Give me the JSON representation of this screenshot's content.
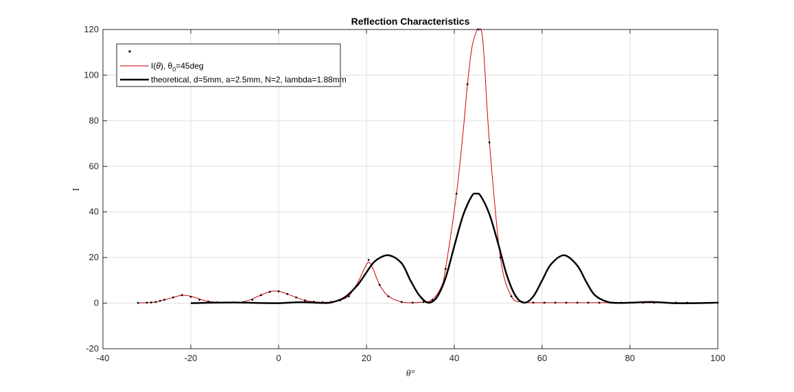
{
  "chart_data": {
    "type": "line",
    "title": "Reflection Characteristics",
    "xlabel": "θ°",
    "ylabel": "I",
    "xlim": [
      -40,
      100
    ],
    "ylim": [
      -20,
      120
    ],
    "xticks": [
      -40,
      -20,
      0,
      20,
      40,
      60,
      80,
      100
    ],
    "yticks": [
      -20,
      0,
      20,
      40,
      60,
      80,
      100,
      120
    ],
    "xtick_labels": [
      "-40",
      "-20",
      "0",
      "20",
      "40",
      "60",
      "80",
      "100"
    ],
    "ytick_labels": [
      "-20",
      "0",
      "20",
      "40",
      "60",
      "80",
      "100",
      "120"
    ],
    "grid": true,
    "legend_position": "top-left",
    "series": [
      {
        "name": "",
        "style": "points",
        "color": "#000000",
        "x": [
          -32,
          -30,
          -29,
          -28,
          -27,
          -26,
          -24,
          -22,
          -20,
          -18,
          -16,
          -14,
          -12,
          -10,
          -8,
          -6,
          -4,
          -2,
          0,
          2,
          4,
          6,
          8,
          10,
          12,
          14,
          16,
          18,
          20.5,
          23,
          25,
          28,
          30.5,
          33,
          35,
          38,
          40.5,
          43,
          45.5,
          48,
          50.5,
          53,
          55.5,
          58,
          60.5,
          63,
          65.5,
          68,
          70.5,
          73,
          75.5,
          78,
          80.5,
          83,
          85.5,
          88,
          90.5,
          93,
          100
        ],
        "y": [
          0.1,
          0.2,
          0.3,
          0.5,
          1.0,
          1.5,
          2.5,
          3.5,
          2.8,
          1.5,
          0.7,
          0.4,
          0.3,
          0.3,
          0.5,
          1.5,
          3.5,
          5.0,
          5.2,
          4.0,
          2.5,
          1.2,
          0.6,
          0.4,
          0.5,
          1.2,
          3.0,
          8.0,
          19.0,
          8.0,
          3.0,
          0.5,
          0.2,
          0.5,
          1.5,
          15.0,
          48.0,
          96.0,
          120.0,
          70.5,
          20.0,
          3.0,
          0.5,
          0.2,
          0.2,
          0.2,
          0.2,
          0.2,
          0.2,
          0.2,
          0.2,
          0.2,
          0.2,
          0.2,
          0.2,
          0.2,
          0.2,
          0.2,
          0.2
        ]
      },
      {
        "name": "I(θ), θ0=45deg",
        "style": "line",
        "color": "#cc0000",
        "x": [
          -32,
          -30,
          -28,
          -26,
          -24,
          -22,
          -20,
          -18,
          -16,
          -14,
          -12,
          -10,
          -8,
          -6,
          -4,
          -2,
          -1,
          0,
          2,
          4,
          6,
          8,
          10,
          12,
          14,
          16,
          18,
          19.5,
          20.5,
          21.5,
          23,
          25,
          28,
          30.5,
          33,
          35,
          37,
          38,
          40.5,
          42,
          43,
          44,
          45,
          45.5,
          46.5,
          48,
          50.5,
          53,
          55.5,
          58,
          62,
          70,
          80,
          85,
          90,
          95,
          100
        ],
        "y": [
          0.1,
          0.2,
          0.5,
          1.5,
          2.5,
          3.5,
          3.0,
          1.8,
          0.8,
          0.4,
          0.3,
          0.3,
          0.6,
          1.8,
          3.6,
          5.0,
          5.3,
          5.2,
          4.0,
          2.5,
          1.2,
          0.6,
          0.4,
          0.5,
          1.3,
          3.2,
          9.0,
          15.0,
          18.0,
          15.0,
          8.0,
          3.0,
          0.5,
          0.2,
          0.5,
          1.5,
          7.0,
          15.0,
          48.0,
          75.0,
          96.0,
          112.0,
          119.0,
          120.0,
          115.0,
          70.5,
          20.0,
          3.0,
          0.5,
          0.2,
          0.2,
          0.2,
          0.2,
          0.2,
          0.2,
          0.2,
          0.2
        ]
      },
      {
        "name": "theoretical, d=5mm, a=2.5mm, N=2, lambda=1.88mm",
        "style": "line-thick",
        "color": "#000000",
        "x": [
          -20,
          -15,
          -10,
          -5,
          0,
          5,
          10,
          12,
          15,
          18,
          20,
          22,
          25,
          28,
          30,
          32,
          34,
          36,
          38,
          40,
          42,
          44,
          45,
          46,
          48,
          50,
          52,
          54,
          56,
          58,
          60,
          62,
          65,
          68,
          70,
          72,
          75,
          78,
          80,
          85,
          90,
          95,
          100
        ],
        "y": [
          0.0,
          0.2,
          0.3,
          0.1,
          0.0,
          0.4,
          0.1,
          0.3,
          2.5,
          8.0,
          13.5,
          18.5,
          21.0,
          17.5,
          10.0,
          3.5,
          0.2,
          2.5,
          11.0,
          25.0,
          38.5,
          47.0,
          48.0,
          47.0,
          39.0,
          26.0,
          12.0,
          3.0,
          0.2,
          3.0,
          10.0,
          17.0,
          21.0,
          16.5,
          9.5,
          3.5,
          0.5,
          0.1,
          0.2,
          0.5,
          0.0,
          0.0,
          0.2
        ]
      }
    ]
  },
  "legend": {
    "entries": [
      {
        "label": "",
        "sub": "",
        "tail": ""
      },
      {
        "label": "I(",
        "theta": "θ",
        "mid": "), θ",
        "sub": "0",
        "tail": "=45deg"
      },
      {
        "label": "theoretical, d=5mm, a=2.5mm, N=2, lambda=1.88mm",
        "sub": "",
        "tail": ""
      }
    ]
  }
}
